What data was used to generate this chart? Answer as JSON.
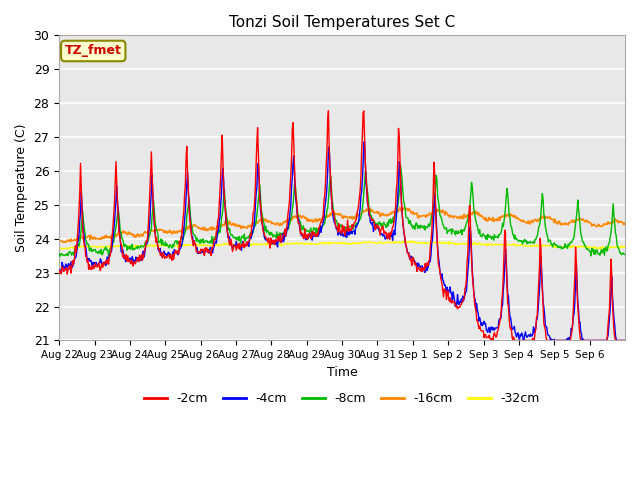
{
  "title": "Tonzi Soil Temperatures Set C",
  "xlabel": "Time",
  "ylabel": "Soil Temperature (C)",
  "annotation": "TZ_fmet",
  "ylim": [
    21.0,
    30.0
  ],
  "yticks": [
    21.0,
    22.0,
    23.0,
    24.0,
    25.0,
    26.0,
    27.0,
    28.0,
    29.0,
    30.0
  ],
  "colors": {
    "-2cm": "#ff0000",
    "-4cm": "#0000ff",
    "-8cm": "#00bb00",
    "-16cm": "#ff8800",
    "-32cm": "#ffff00"
  },
  "background_color": "#e8e8e8",
  "figure_bg": "#ffffff",
  "grid_color": "#ffffff",
  "date_labels": [
    "Aug 22",
    "Aug 23",
    "Aug 24",
    "Aug 25",
    "Aug 26",
    "Aug 27",
    "Aug 28",
    "Aug 29",
    "Aug 30",
    "Aug 31",
    "Sep 1",
    "Sep 2",
    "Sep 3",
    "Sep 4",
    "Sep 5",
    "Sep 6"
  ]
}
